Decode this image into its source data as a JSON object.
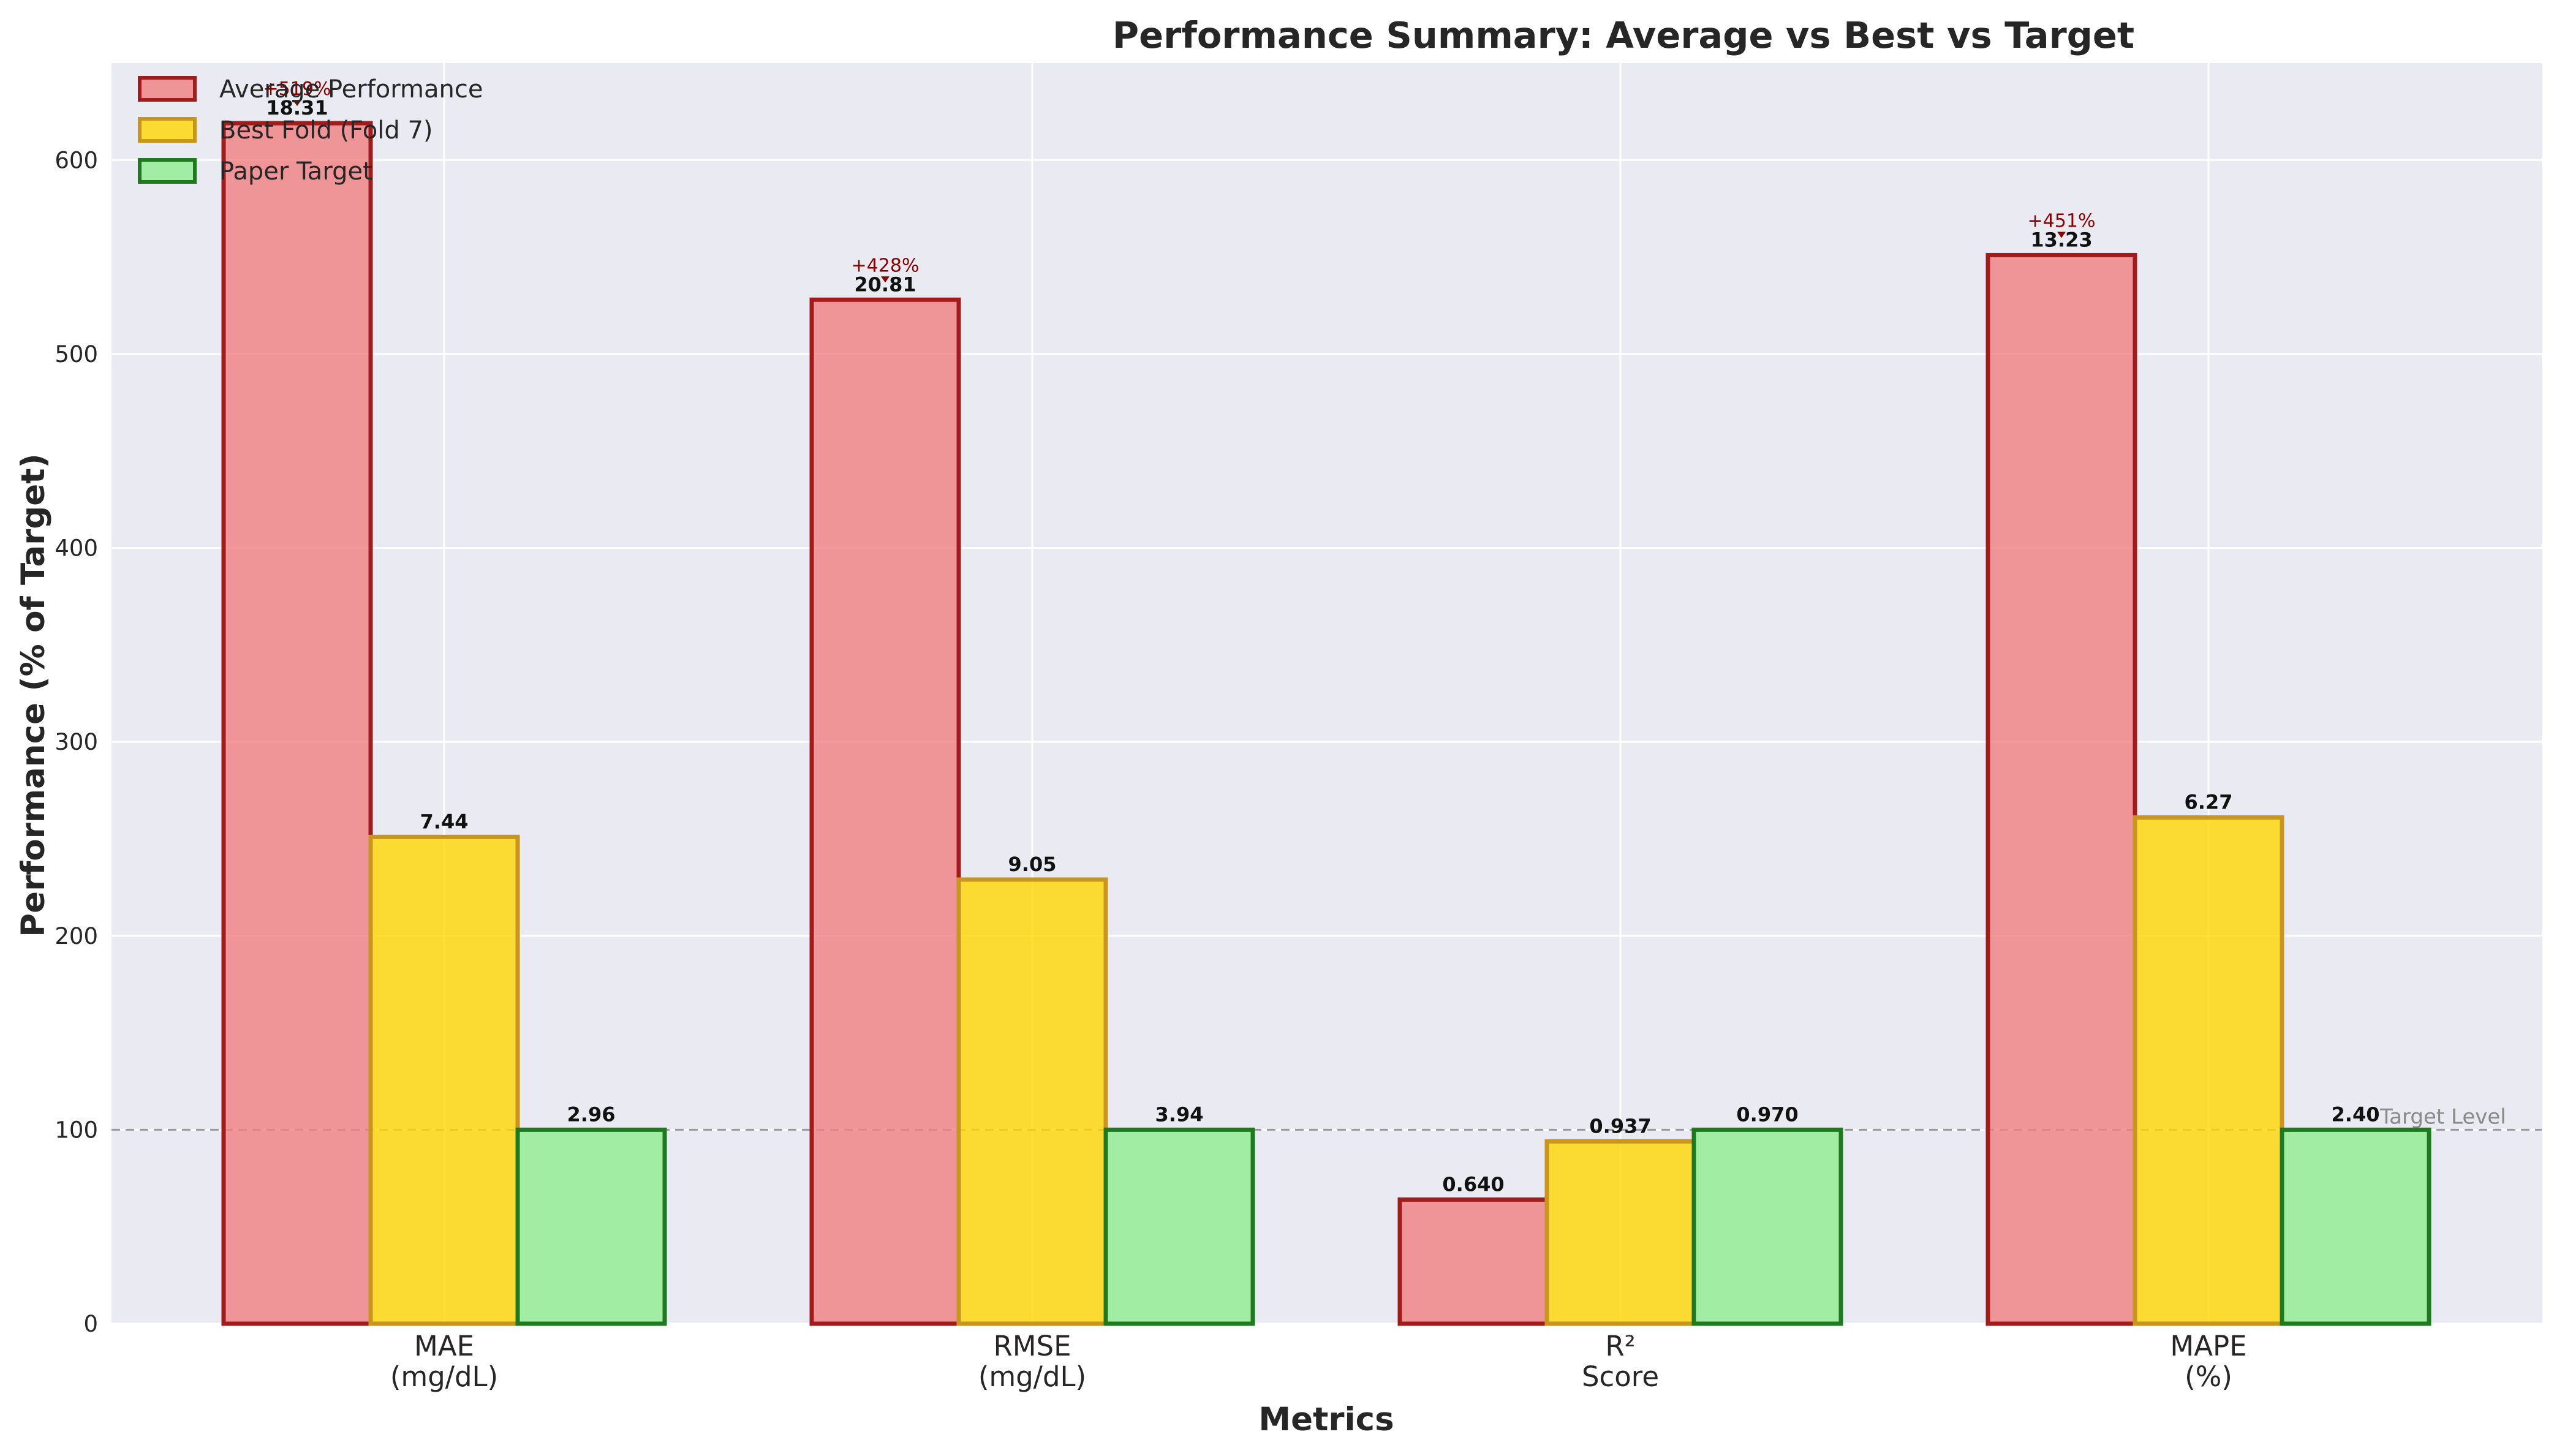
{
  "chart_data": {
    "type": "bar",
    "title": "Performance Summary: Average vs Best vs Target",
    "xlabel": "Metrics",
    "ylabel": "Performance (% of Target)",
    "ylim": [
      0,
      650
    ],
    "yticks": [
      0,
      100,
      200,
      300,
      400,
      500,
      600
    ],
    "grid": true,
    "legend_position": "top-left",
    "categories": [
      [
        "MAE",
        "(mg/dL)"
      ],
      [
        "RMSE",
        "(mg/dL)"
      ],
      [
        "R²",
        "Score"
      ],
      [
        "MAPE",
        "(%)"
      ]
    ],
    "series": [
      {
        "name": "Average Performance",
        "fill": "#f08080",
        "edge": "#a11c1c",
        "values": [
          619,
          528,
          64,
          551
        ],
        "labels": [
          "18.31",
          "20.81",
          "0.640",
          "13.23"
        ]
      },
      {
        "name": "Best Fold (Fold 7)",
        "fill": "#ffd700",
        "edge": "#c8961e",
        "values": [
          251,
          229,
          94,
          261
        ],
        "labels": [
          "7.44",
          "9.05",
          "0.937",
          "6.27"
        ]
      },
      {
        "name": "Paper Target",
        "fill": "#90ee90",
        "edge": "#1f7a1f",
        "values": [
          100,
          100,
          100,
          100
        ],
        "labels": [
          "2.96",
          "3.94",
          "0.970",
          "2.40"
        ]
      }
    ],
    "deviation_annotations": [
      {
        "category_index": 0,
        "text": "+519%"
      },
      {
        "category_index": 1,
        "text": "+428%"
      },
      {
        "category_index": 3,
        "text": "+451%"
      }
    ],
    "reference_line": {
      "value": 100,
      "label": "Target Level"
    }
  }
}
